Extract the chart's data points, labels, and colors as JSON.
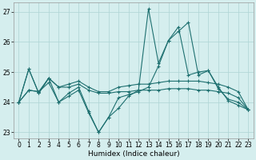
{
  "xlabel": "Humidex (Indice chaleur)",
  "background_color": "#d5eeee",
  "line_color": "#1e7070",
  "grid_color": "#aed4d4",
  "xlim": [
    -0.5,
    23.5
  ],
  "ylim": [
    22.8,
    27.3
  ],
  "yticks": [
    23,
    24,
    25,
    26,
    27
  ],
  "xticks": [
    0,
    1,
    2,
    3,
    4,
    5,
    6,
    7,
    8,
    9,
    10,
    11,
    12,
    13,
    14,
    15,
    16,
    17,
    18,
    19,
    20,
    21,
    22,
    23
  ],
  "series": [
    [
      24.0,
      25.1,
      24.3,
      24.8,
      24.0,
      24.3,
      24.5,
      23.7,
      23.0,
      23.5,
      23.8,
      24.2,
      24.4,
      27.1,
      25.3,
      26.05,
      26.35,
      26.65,
      24.9,
      25.05,
      24.5,
      24.05,
      23.9,
      23.75
    ],
    [
      24.0,
      25.1,
      24.3,
      24.8,
      24.5,
      24.6,
      24.7,
      24.5,
      24.35,
      24.35,
      24.5,
      24.55,
      24.6,
      24.6,
      24.65,
      24.7,
      24.7,
      24.7,
      24.7,
      24.65,
      24.6,
      24.5,
      24.35,
      23.75
    ],
    [
      24.0,
      24.4,
      24.35,
      24.8,
      24.5,
      24.5,
      24.6,
      24.4,
      24.3,
      24.3,
      24.35,
      24.35,
      24.4,
      24.4,
      24.4,
      24.45,
      24.45,
      24.45,
      24.4,
      24.4,
      24.35,
      24.3,
      24.15,
      23.75
    ],
    [
      24.0,
      24.4,
      24.35,
      24.65,
      24.0,
      24.2,
      24.4,
      23.65,
      23.0,
      23.5,
      24.15,
      24.25,
      24.35,
      24.5,
      25.2,
      26.05,
      26.5,
      24.9,
      25.0,
      25.05,
      24.45,
      24.1,
      24.0,
      23.75
    ]
  ]
}
